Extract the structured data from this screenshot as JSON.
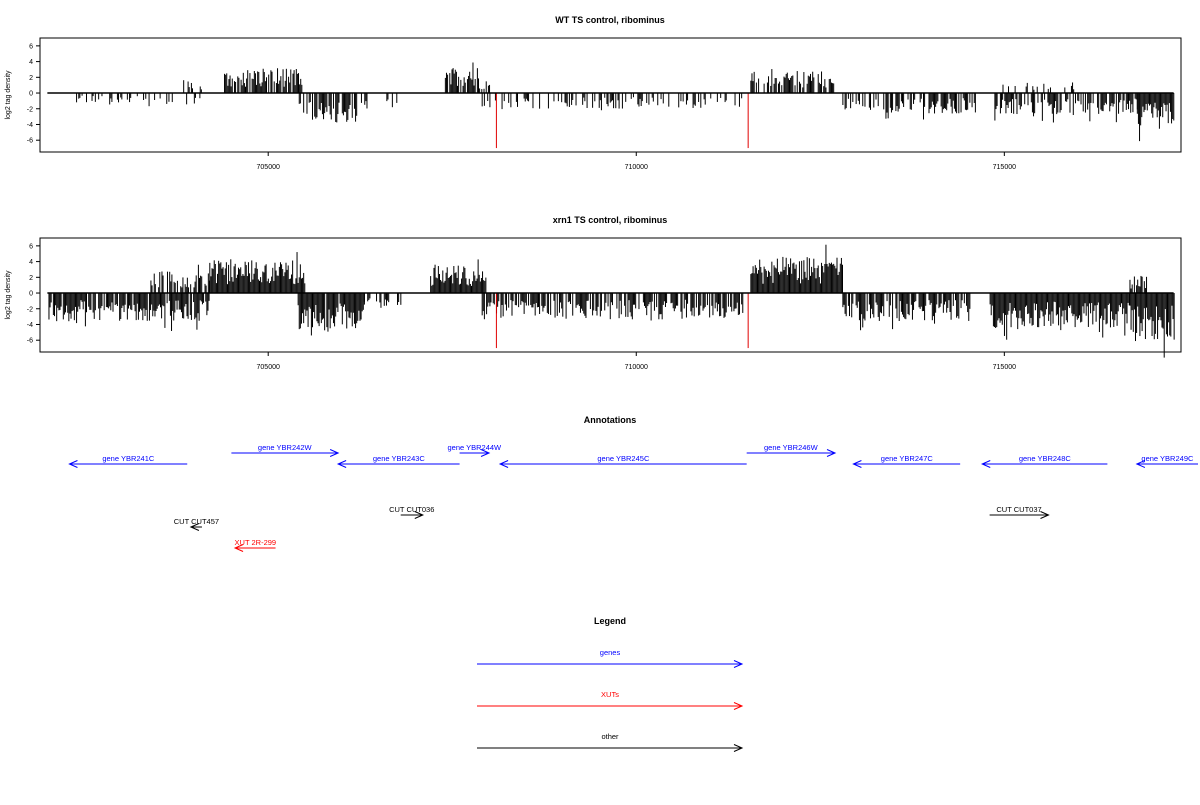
{
  "chart_data": [
    {
      "type": "bar",
      "title": "WT TS control, ribominus",
      "ylabel": "log2 tag density",
      "xlabel": "",
      "xlim": [
        701900,
        717400
      ],
      "ylim": [
        -7.5,
        7
      ],
      "yticks": [
        6,
        4,
        2,
        0,
        -2,
        -4,
        -6
      ],
      "xticks": [
        {
          "value": 705000,
          "label": "705000"
        },
        {
          "value": 710000,
          "label": "710000"
        },
        {
          "value": 715000,
          "label": "715000"
        }
      ],
      "markers": [
        {
          "x": 708100,
          "y": -7.0,
          "color": "#e00000"
        },
        {
          "x": 711520,
          "y": -7.0,
          "color": "#e00000"
        }
      ],
      "segments": [
        {
          "strand": "minus",
          "from": 702300,
          "to": 703300,
          "amplitude": 1.2,
          "density": 0.35
        },
        {
          "strand": "minus",
          "from": 703300,
          "to": 704100,
          "amplitude": 1.8,
          "density": 0.3
        },
        {
          "strand": "plus",
          "from": 703800,
          "to": 704150,
          "amplitude": 1.8,
          "density": 0.35
        },
        {
          "strand": "plus",
          "from": 704400,
          "to": 705450,
          "amplitude": 3.2,
          "density": 0.8
        },
        {
          "strand": "minus",
          "from": 705400,
          "to": 706200,
          "amplitude": 3.8,
          "density": 0.7
        },
        {
          "strand": "minus",
          "from": 706200,
          "to": 706900,
          "amplitude": 2.0,
          "density": 0.2
        },
        {
          "strand": "plus",
          "from": 707400,
          "to": 707850,
          "amplitude": 3.2,
          "density": 0.9
        },
        {
          "strand": "plus",
          "from": 707850,
          "to": 708000,
          "amplitude": 1.6,
          "density": 0.6
        },
        {
          "strand": "minus",
          "from": 707900,
          "to": 711450,
          "amplitude": 2.0,
          "density": 0.3
        },
        {
          "strand": "plus",
          "from": 711550,
          "to": 712700,
          "amplitude": 2.8,
          "density": 0.7
        },
        {
          "strand": "minus",
          "from": 712800,
          "to": 714600,
          "amplitude": 2.6,
          "density": 0.55
        },
        {
          "strand": "plus",
          "from": 714900,
          "to": 716000,
          "amplitude": 1.4,
          "density": 0.2
        },
        {
          "strand": "minus",
          "from": 714850,
          "to": 716800,
          "amplitude": 2.8,
          "density": 0.65
        },
        {
          "strand": "minus",
          "from": 716800,
          "to": 717300,
          "amplitude": 4.6,
          "density": 1.0
        }
      ]
    },
    {
      "type": "bar",
      "title": "xrn1 TS control, ribominus",
      "ylabel": "log2 tag density",
      "xlabel": "",
      "xlim": [
        701900,
        717400
      ],
      "ylim": [
        -7.5,
        7
      ],
      "yticks": [
        6,
        4,
        2,
        0,
        -2,
        -4,
        -6
      ],
      "xticks": [
        {
          "value": 705000,
          "label": "705000"
        },
        {
          "value": 710000,
          "label": "710000"
        },
        {
          "value": 715000,
          "label": "715000"
        }
      ],
      "markers": [
        {
          "x": 708100,
          "y": -7.0,
          "color": "#e00000"
        },
        {
          "x": 711520,
          "y": -7.0,
          "color": "#e00000"
        }
      ],
      "segments": [
        {
          "strand": "minus",
          "from": 702000,
          "to": 704200,
          "amplitude": 3.6,
          "density": 0.9
        },
        {
          "strand": "plus",
          "from": 703400,
          "to": 704200,
          "amplitude": 2.8,
          "density": 0.6
        },
        {
          "strand": "plus",
          "from": 704200,
          "to": 705500,
          "amplitude": 4.2,
          "density": 1.0
        },
        {
          "strand": "minus",
          "from": 705400,
          "to": 706300,
          "amplitude": 4.8,
          "density": 0.9
        },
        {
          "strand": "minus",
          "from": 706300,
          "to": 706800,
          "amplitude": 2.0,
          "density": 0.3
        },
        {
          "strand": "plus",
          "from": 707200,
          "to": 707950,
          "amplitude": 3.6,
          "density": 1.0
        },
        {
          "strand": "minus",
          "from": 707900,
          "to": 711450,
          "amplitude": 3.4,
          "density": 0.7
        },
        {
          "strand": "plus",
          "from": 711550,
          "to": 712800,
          "amplitude": 4.6,
          "density": 1.0
        },
        {
          "strand": "minus",
          "from": 712800,
          "to": 714600,
          "amplitude": 3.6,
          "density": 0.8
        },
        {
          "strand": "minus",
          "from": 714800,
          "to": 716700,
          "amplitude": 4.4,
          "density": 1.0
        },
        {
          "strand": "minus",
          "from": 716700,
          "to": 717300,
          "amplitude": 6.2,
          "density": 1.0
        },
        {
          "strand": "plus",
          "from": 716700,
          "to": 716950,
          "amplitude": 2.2,
          "density": 0.6
        }
      ]
    }
  ],
  "annotations": {
    "title": "Annotations",
    "features": [
      {
        "label": "gene YBR241C",
        "type": "genes",
        "from": 702300,
        "to": 703900,
        "strand": "-",
        "row": 1
      },
      {
        "label": "gene YBR242W",
        "type": "genes",
        "from": 704500,
        "to": 705950,
        "strand": "+",
        "row": 0
      },
      {
        "label": "gene YBR243C",
        "type": "genes",
        "from": 705950,
        "to": 707600,
        "strand": "-",
        "row": 1
      },
      {
        "label": "gene YBR244W",
        "type": "genes",
        "from": 707600,
        "to": 708000,
        "strand": "+",
        "row": 0
      },
      {
        "label": "gene YBR245C",
        "type": "genes",
        "from": 708150,
        "to": 711500,
        "strand": "-",
        "row": 1
      },
      {
        "label": "gene YBR246W",
        "type": "genes",
        "from": 711500,
        "to": 712700,
        "strand": "+",
        "row": 0
      },
      {
        "label": "gene YBR247C",
        "type": "genes",
        "from": 712950,
        "to": 714400,
        "strand": "-",
        "row": 1
      },
      {
        "label": "gene YBR248C",
        "type": "genes",
        "from": 714700,
        "to": 716400,
        "strand": "-",
        "row": 1
      },
      {
        "label": "gene YBR249C",
        "type": "genes",
        "from": 716800,
        "to": 717900,
        "strand": "-",
        "row": 1
      },
      {
        "label": "CUT CUT457",
        "type": "other",
        "from": 703950,
        "to": 704100,
        "strand": "-",
        "row": 3
      },
      {
        "label": "CUT CUT036",
        "type": "other",
        "from": 706800,
        "to": 707100,
        "strand": "+",
        "row": 2
      },
      {
        "label": "CUT CUT037",
        "type": "other",
        "from": 714800,
        "to": 715600,
        "strand": "+",
        "row": 2
      },
      {
        "label": "XUT 2R-299",
        "type": "XUTs",
        "from": 704550,
        "to": 705100,
        "strand": "-",
        "row": 4
      }
    ]
  },
  "legend": {
    "title": "Legend",
    "items": [
      {
        "label": "genes",
        "color": "#0000ff"
      },
      {
        "label": "XUTs",
        "color": "#ff0000"
      },
      {
        "label": "other",
        "color": "#000000"
      }
    ]
  }
}
